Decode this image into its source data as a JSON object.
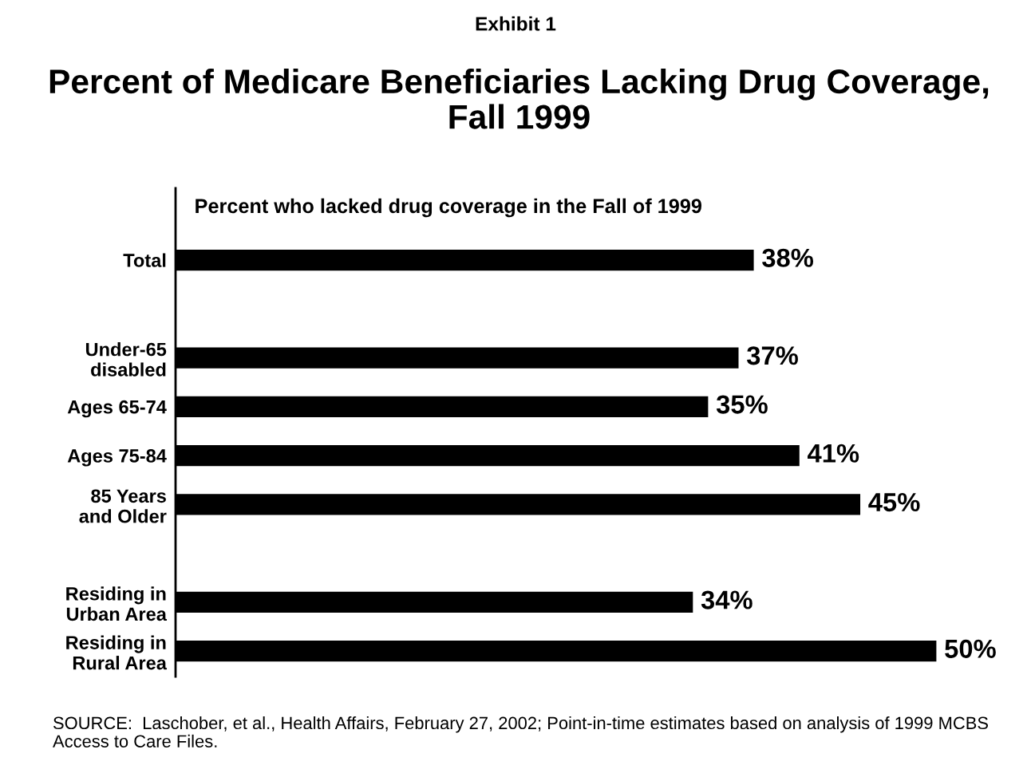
{
  "chart_data": {
    "type": "bar",
    "orientation": "horizontal",
    "title": "Percent of Medicare Beneficiaries Lacking Drug Coverage, Fall 1999",
    "subtitle": "Percent who lacked drug coverage in the Fall of 1999",
    "categories": [
      "Total",
      null,
      "Under-65 disabled",
      "Ages 65-74",
      "Ages 75-84",
      "85 Years and Older",
      null,
      "Residing in Urban Area",
      "Residing in Rural Area"
    ],
    "values": [
      38,
      null,
      37,
      35,
      41,
      45,
      null,
      34,
      50
    ],
    "value_labels": [
      "38%",
      null,
      "37%",
      "35%",
      "41%",
      "45%",
      null,
      "34%",
      "50%"
    ],
    "color": "#000000",
    "grid": false,
    "legend": false,
    "annotations": [
      "Exhibit 1",
      "SOURCE:  Laschober, et al., Health Affairs, February 27, 2002; Point-in-time estimates based on analysis of 1999 MCBS Access to Care Files."
    ]
  }
}
